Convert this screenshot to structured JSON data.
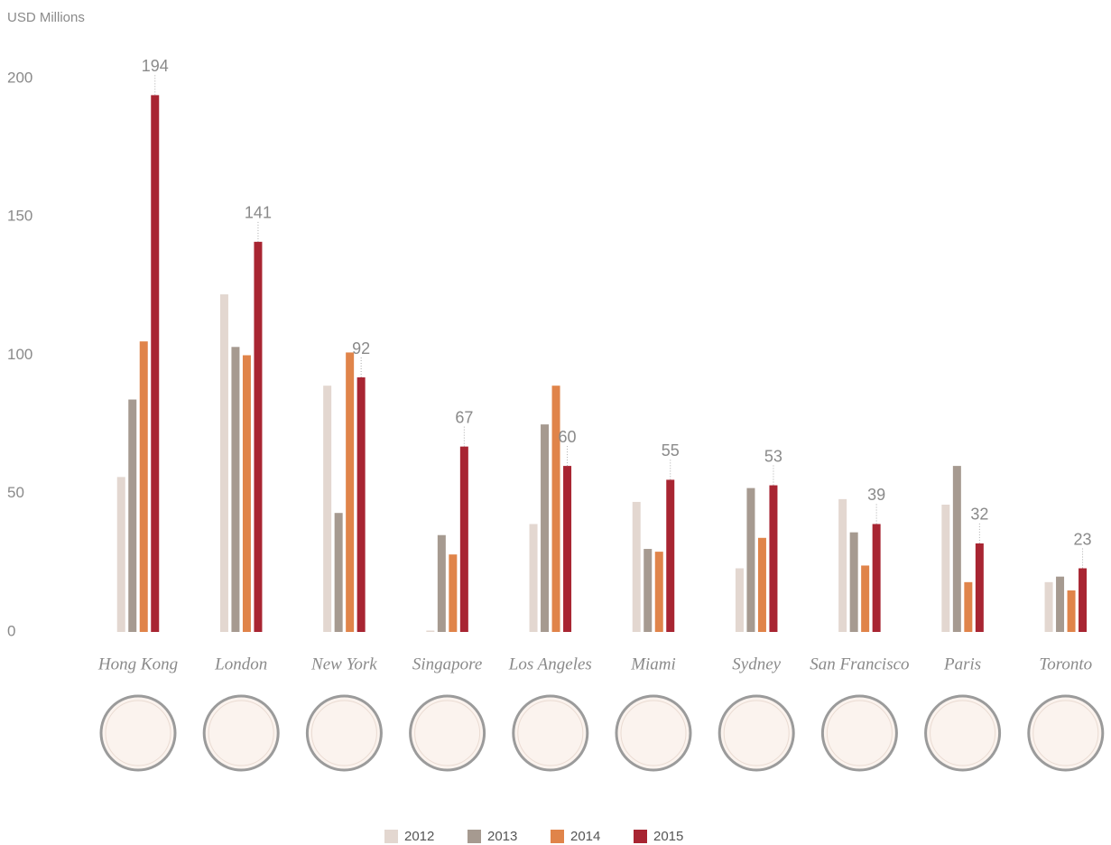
{
  "chart_data": {
    "type": "bar",
    "y_axis_label": "USD Millions",
    "categories": [
      "Hong Kong",
      "London",
      "New York",
      "Singapore",
      "Los Angeles",
      "Miami",
      "Sydney",
      "San Francisco",
      "Paris",
      "Toronto"
    ],
    "series": [
      {
        "name": "2012",
        "color": "#e3d7d0",
        "values": [
          56,
          122,
          89,
          0.5,
          39,
          47,
          23,
          48,
          46,
          18
        ]
      },
      {
        "name": "2013",
        "color": "#a69a90",
        "values": [
          84,
          103,
          43,
          35,
          75,
          30,
          52,
          36,
          60,
          20
        ]
      },
      {
        "name": "2014",
        "color": "#e0844a",
        "values": [
          105,
          100,
          101,
          28,
          89,
          29,
          34,
          24,
          18,
          15
        ]
      },
      {
        "name": "2015",
        "color": "#a82532",
        "values": [
          194,
          141,
          92,
          67,
          60,
          55,
          53,
          39,
          32,
          23
        ],
        "show_labels": true
      }
    ],
    "ylim": [
      0,
      200
    ],
    "yticks": [
      0,
      50,
      100,
      150,
      200
    ],
    "grid": false
  }
}
